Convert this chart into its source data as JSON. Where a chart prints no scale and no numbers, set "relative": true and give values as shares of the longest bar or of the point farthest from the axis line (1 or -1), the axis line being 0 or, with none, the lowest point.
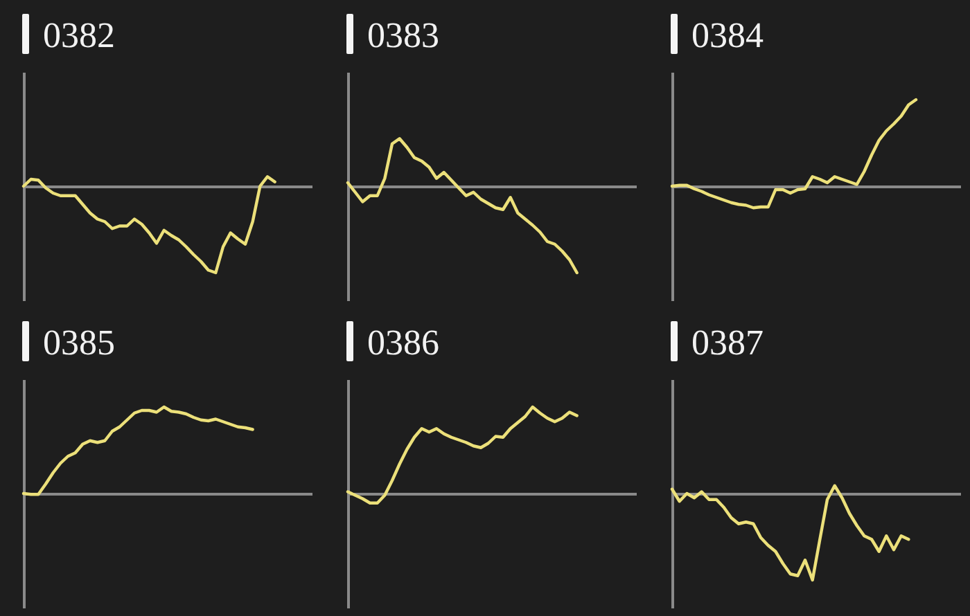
{
  "chart_data": [
    {
      "type": "line",
      "title": "0382",
      "relative": true,
      "color": "#ece07a",
      "categories": [
        null,
        null,
        null,
        null,
        null,
        null,
        null,
        null,
        null,
        null,
        null,
        null,
        null,
        null,
        null,
        null,
        null,
        null,
        null,
        null,
        null,
        null,
        null,
        null,
        null,
        null,
        null,
        null,
        null,
        null,
        null,
        null,
        null,
        null,
        null,
        null,
        null,
        null,
        null,
        null
      ],
      "values": [
        0,
        0.08,
        0.07,
        -0.02,
        -0.08,
        -0.11,
        -0.11,
        -0.11,
        -0.21,
        -0.31,
        -0.38,
        -0.41,
        -0.49,
        -0.46,
        -0.46,
        -0.38,
        -0.44,
        -0.54,
        -0.66,
        -0.51,
        -0.57,
        -0.62,
        -0.7,
        -0.79,
        -0.87,
        -0.97,
        -1,
        -0.7,
        -0.54,
        -0.61,
        -0.67,
        -0.41,
        0,
        0.11,
        0.05,
        null,
        null,
        null,
        null,
        null
      ]
    },
    {
      "type": "line",
      "title": "0383",
      "relative": true,
      "color": "#ece07a",
      "categories": [
        null,
        null,
        null,
        null,
        null,
        null,
        null,
        null,
        null,
        null,
        null,
        null,
        null,
        null,
        null,
        null,
        null,
        null,
        null,
        null,
        null,
        null,
        null,
        null,
        null,
        null,
        null,
        null,
        null,
        null,
        null,
        null,
        null,
        null,
        null,
        null,
        null,
        null,
        null,
        null
      ],
      "values": [
        0.04,
        -0.07,
        -0.18,
        -0.11,
        -0.11,
        0.09,
        0.49,
        0.55,
        0.45,
        0.33,
        0.29,
        0.22,
        0.09,
        0.16,
        0.07,
        -0.02,
        -0.11,
        -0.07,
        -0.15,
        -0.2,
        -0.25,
        -0.27,
        -0.13,
        -0.31,
        -0.38,
        -0.45,
        -0.53,
        -0.64,
        -0.67,
        -0.75,
        -0.85,
        -1,
        null,
        null,
        null,
        null,
        null,
        null,
        null,
        null
      ]
    },
    {
      "type": "line",
      "title": "0384",
      "relative": true,
      "color": "#ece07a",
      "categories": [
        null,
        null,
        null,
        null,
        null,
        null,
        null,
        null,
        null,
        null,
        null,
        null,
        null,
        null,
        null,
        null,
        null,
        null,
        null,
        null,
        null,
        null,
        null,
        null,
        null,
        null,
        null,
        null,
        null,
        null,
        null,
        null,
        null,
        null,
        null,
        null,
        null,
        null,
        null,
        null
      ],
      "values": [
        0,
        0.01,
        0.01,
        -0.03,
        -0.06,
        -0.1,
        -0.13,
        -0.16,
        -0.19,
        -0.21,
        -0.22,
        -0.25,
        -0.24,
        -0.24,
        -0.04,
        -0.04,
        -0.08,
        -0.04,
        -0.03,
        0.11,
        0.08,
        0.04,
        0.11,
        0.08,
        0.05,
        0.02,
        0.17,
        0.36,
        0.53,
        0.64,
        0.72,
        0.81,
        0.94,
        1,
        null,
        null,
        null,
        null,
        null,
        null
      ]
    },
    {
      "type": "line",
      "title": "0385",
      "relative": true,
      "color": "#ece07a",
      "categories": [
        null,
        null,
        null,
        null,
        null,
        null,
        null,
        null,
        null,
        null,
        null,
        null,
        null,
        null,
        null,
        null,
        null,
        null,
        null,
        null,
        null,
        null,
        null,
        null,
        null,
        null,
        null,
        null,
        null,
        null,
        null,
        null,
        null,
        null,
        null,
        null,
        null,
        null,
        null,
        null
      ],
      "values": [
        0,
        -0.01,
        -0.01,
        0.11,
        0.24,
        0.35,
        0.43,
        0.47,
        0.57,
        0.61,
        0.59,
        0.61,
        0.72,
        0.77,
        0.85,
        0.93,
        0.96,
        0.96,
        0.94,
        1,
        0.95,
        0.94,
        0.92,
        0.88,
        0.85,
        0.84,
        0.86,
        0.83,
        0.8,
        0.77,
        0.76,
        0.74,
        null,
        null,
        null,
        null,
        null,
        null,
        null,
        null
      ]
    },
    {
      "type": "line",
      "title": "0386",
      "relative": true,
      "color": "#ece07a",
      "categories": [
        null,
        null,
        null,
        null,
        null,
        null,
        null,
        null,
        null,
        null,
        null,
        null,
        null,
        null,
        null,
        null,
        null,
        null,
        null,
        null,
        null,
        null,
        null,
        null,
        null,
        null,
        null,
        null,
        null,
        null,
        null,
        null,
        null,
        null,
        null,
        null,
        null,
        null,
        null,
        null
      ],
      "values": [
        0.02,
        -0.02,
        -0.06,
        -0.11,
        -0.11,
        -0.02,
        0.15,
        0.34,
        0.51,
        0.65,
        0.75,
        0.71,
        0.75,
        0.69,
        0.65,
        0.62,
        0.59,
        0.55,
        0.53,
        0.58,
        0.66,
        0.65,
        0.75,
        0.82,
        0.89,
        1,
        0.93,
        0.87,
        0.83,
        0.87,
        0.94,
        0.9,
        null,
        null,
        null,
        null,
        null,
        null,
        null,
        null
      ]
    },
    {
      "type": "line",
      "title": "0387",
      "relative": true,
      "color": "#ece07a",
      "categories": [
        null,
        null,
        null,
        null,
        null,
        null,
        null,
        null,
        null,
        null,
        null,
        null,
        null,
        null,
        null,
        null,
        null,
        null,
        null,
        null,
        null,
        null,
        null,
        null,
        null,
        null,
        null,
        null,
        null,
        null,
        null,
        null,
        null,
        null,
        null,
        null,
        null,
        null,
        null,
        null
      ],
      "values": [
        0.05,
        -0.09,
        0,
        -0.05,
        0.02,
        -0.07,
        -0.07,
        -0.16,
        -0.28,
        -0.35,
        -0.33,
        -0.35,
        -0.51,
        -0.6,
        -0.67,
        -0.81,
        -0.93,
        -0.95,
        -0.77,
        -1,
        -0.53,
        -0.07,
        0.09,
        -0.05,
        -0.23,
        -0.37,
        -0.49,
        -0.53,
        -0.67,
        -0.49,
        -0.65,
        -0.49,
        -0.53,
        null,
        null,
        null,
        null,
        null,
        null,
        null
      ]
    }
  ]
}
